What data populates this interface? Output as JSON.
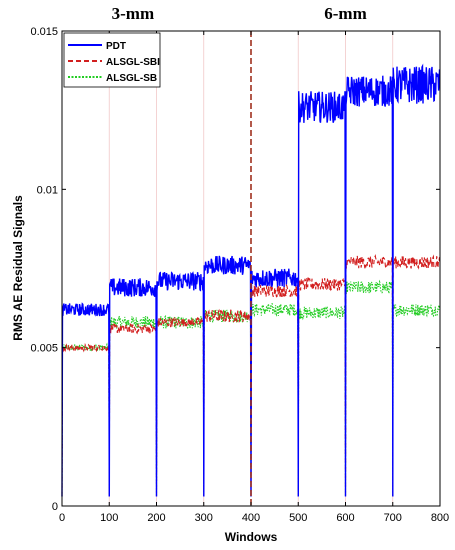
{
  "chart_data": {
    "type": "line",
    "xlabel": "Windows",
    "ylabel": "RMS AE Residual Signals",
    "xlim": [
      0,
      800
    ],
    "ylim": [
      0,
      0.015
    ],
    "x_ticks": [
      "0",
      "100",
      "200",
      "300",
      "400",
      "500",
      "600",
      "700",
      "800"
    ],
    "y_ticks": [
      "0",
      "0.005",
      "0.01",
      "0.015"
    ],
    "grid": false,
    "legend_position": "top-left",
    "annotations": [
      {
        "text": "3-mm",
        "x": 150
      },
      {
        "text": "6-mm",
        "x": 600
      }
    ],
    "divider_x": 400,
    "divider_color": "#a0301e",
    "segment_starts": [
      0,
      100,
      200,
      300,
      400,
      500,
      600,
      700
    ],
    "segment_dip_value": 0.0003,
    "series": [
      {
        "name": "PDT",
        "color": "#0000ff",
        "style": "solid",
        "segment_means": [
          0.0062,
          0.0069,
          0.0071,
          0.0076,
          0.0072,
          0.0126,
          0.0131,
          0.0133
        ],
        "segment_noise": [
          0.0002,
          0.0003,
          0.0003,
          0.0003,
          0.0003,
          0.0005,
          0.0005,
          0.0006
        ]
      },
      {
        "name": "ALSGL-SBI",
        "color": "#d21f1f",
        "style": "dashed",
        "segment_means": [
          0.005,
          0.0056,
          0.0058,
          0.006,
          0.0068,
          0.007,
          0.0077,
          0.0077
        ],
        "segment_noise": [
          0.0001,
          0.00015,
          0.00015,
          0.0002,
          0.0002,
          0.0002,
          0.0002,
          0.0002
        ]
      },
      {
        "name": "ALSGL-SB",
        "color": "#22cc22",
        "style": "dotted",
        "segment_means": [
          0.005,
          0.0058,
          0.0058,
          0.006,
          0.0062,
          0.0061,
          0.0069,
          0.0062
        ],
        "segment_noise": [
          0.0001,
          0.0002,
          0.0002,
          0.0002,
          0.0002,
          0.0002,
          0.0002,
          0.0002
        ]
      }
    ]
  }
}
